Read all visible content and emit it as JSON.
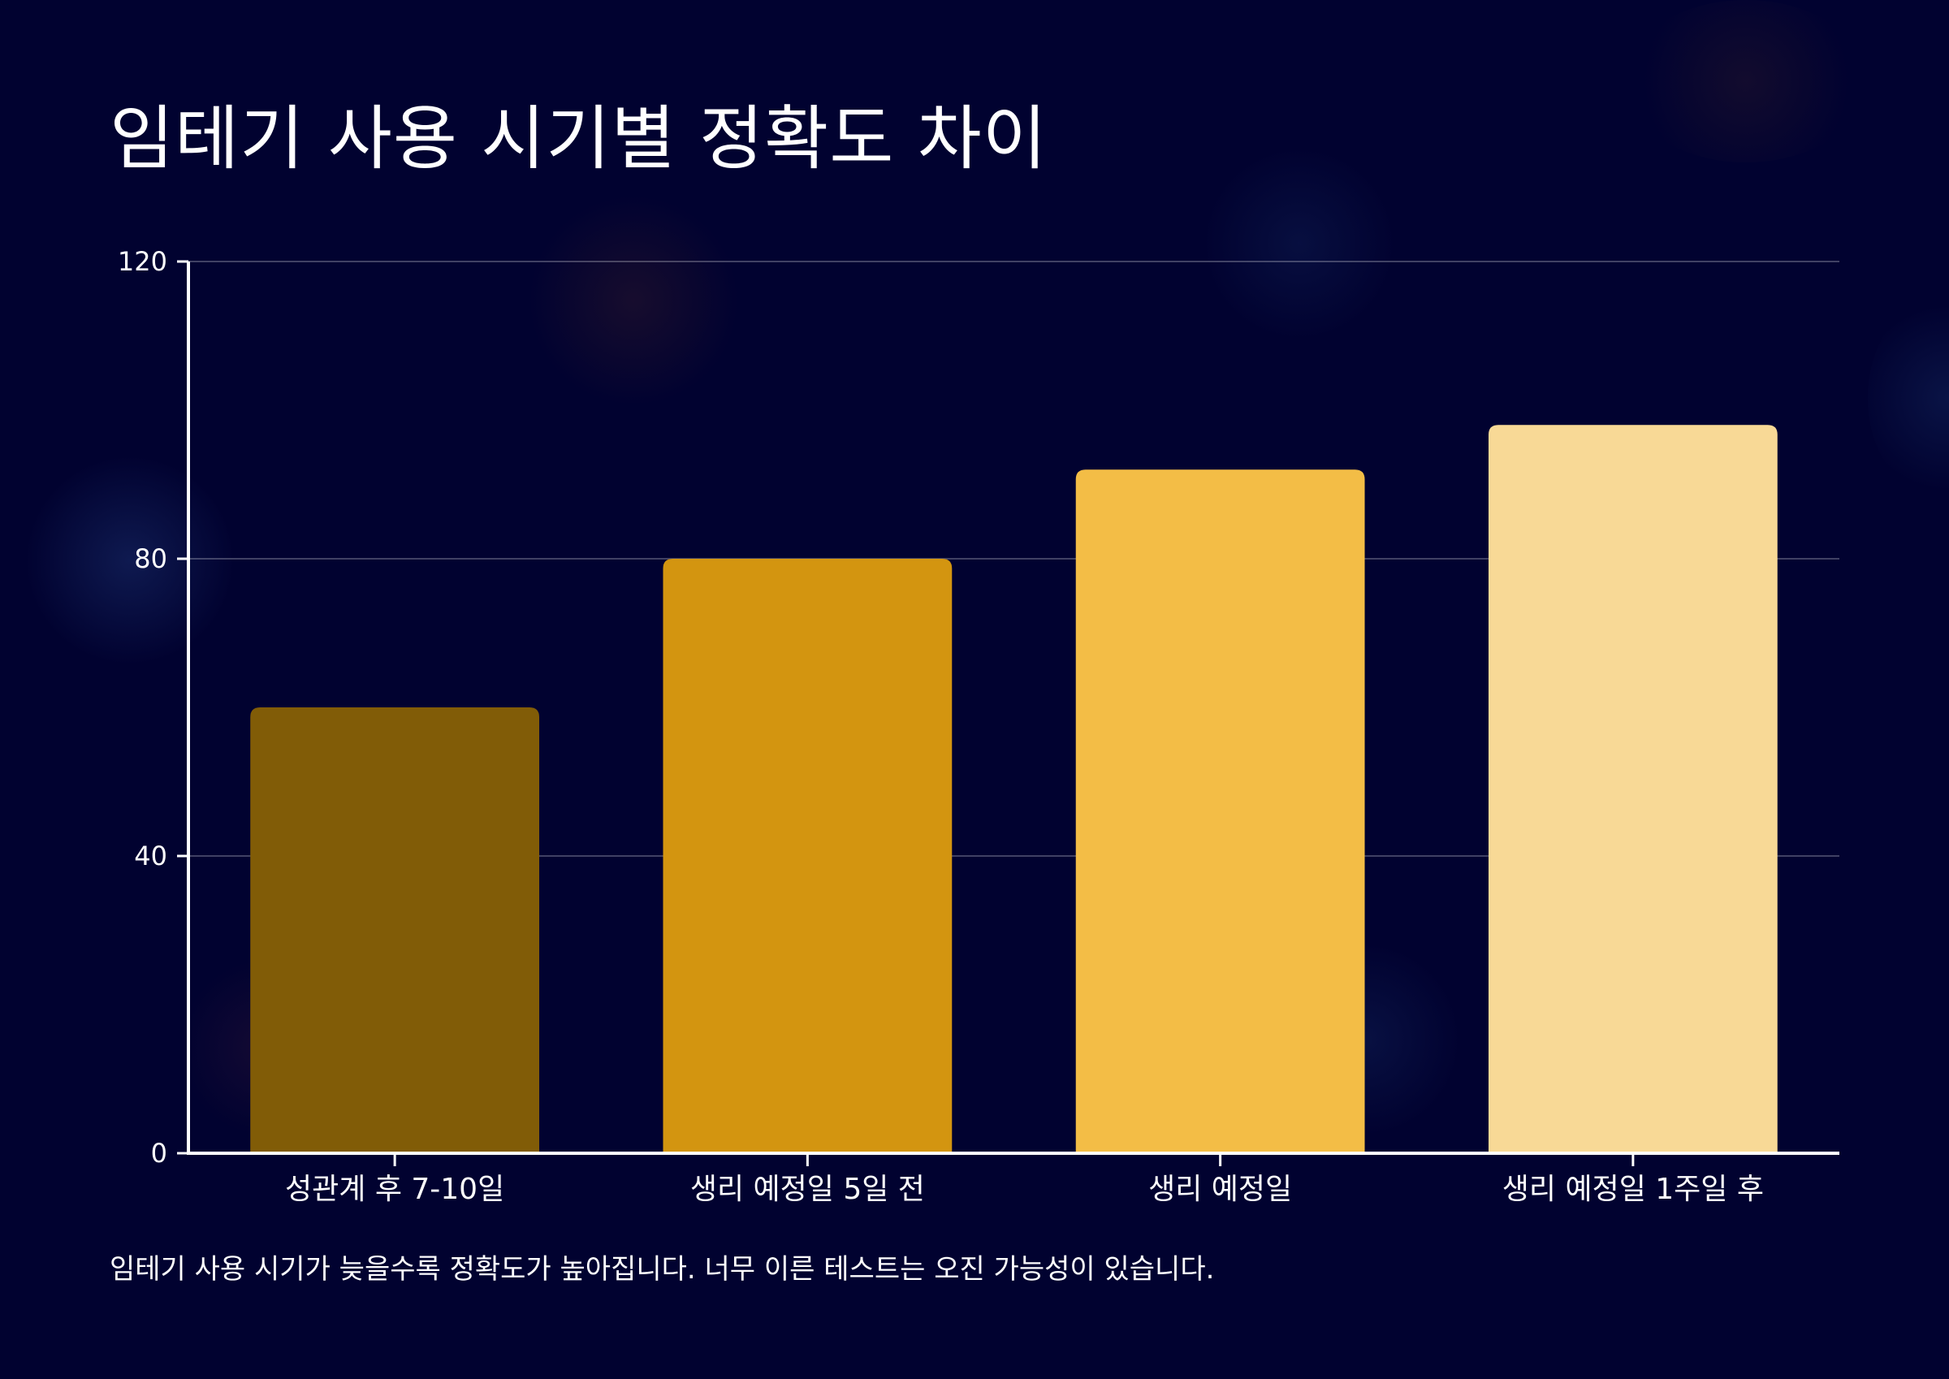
{
  "chart_data": {
    "type": "bar",
    "title": "임테기 사용 시기별 정확도 차이",
    "xlabel": "",
    "ylabel": "",
    "categories": [
      "성관계 후 7-10일",
      "생리 예정일 5일 전",
      "생리 예정일",
      "생리 예정일 1주일 후"
    ],
    "values": [
      60,
      80,
      92,
      98
    ],
    "colors": [
      "#815c07",
      "#d39510",
      "#f3bd46",
      "#f8d996"
    ],
    "ylim": [
      0,
      120
    ],
    "yticks": [
      0,
      40,
      80,
      120
    ],
    "grid": true,
    "legend": "none",
    "caption": "임테기 사용 시기가 늦을수록 정확도가 높아집니다. 너무 이른 테스트는 오진 가능성이 있습니다."
  }
}
